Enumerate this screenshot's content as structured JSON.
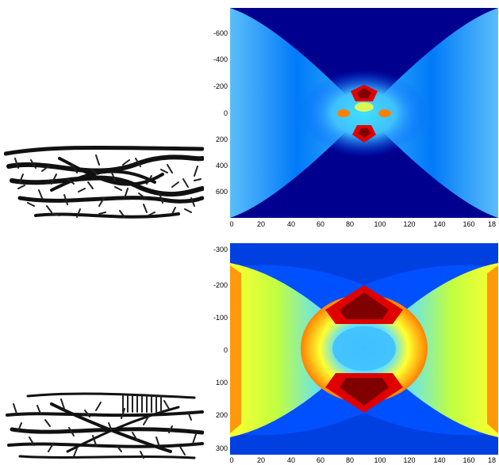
{
  "figure": {
    "panels": [
      {
        "id": "top",
        "y_ticks": [
          "-600",
          "-400",
          "-200",
          "0",
          "200",
          "400",
          "600"
        ],
        "x_ticks": [
          "0",
          "20",
          "40",
          "60",
          "80",
          "100",
          "120",
          "140",
          "160",
          "18"
        ]
      },
      {
        "id": "bottom",
        "y_ticks": [
          "-300",
          "-200",
          "-100",
          "0",
          "100",
          "200",
          "300"
        ],
        "x_ticks": [
          "0",
          "20",
          "40",
          "60",
          "80",
          "100",
          "120",
          "140",
          "160",
          "18"
        ]
      }
    ],
    "colormap": "jet",
    "colors": {
      "dark_blue": "#00008f",
      "blue": "#0050ff",
      "cyan": "#40e0ff",
      "yellow": "#ffff30",
      "orange": "#ff8000",
      "red": "#e00000",
      "dark_red": "#800000"
    }
  }
}
